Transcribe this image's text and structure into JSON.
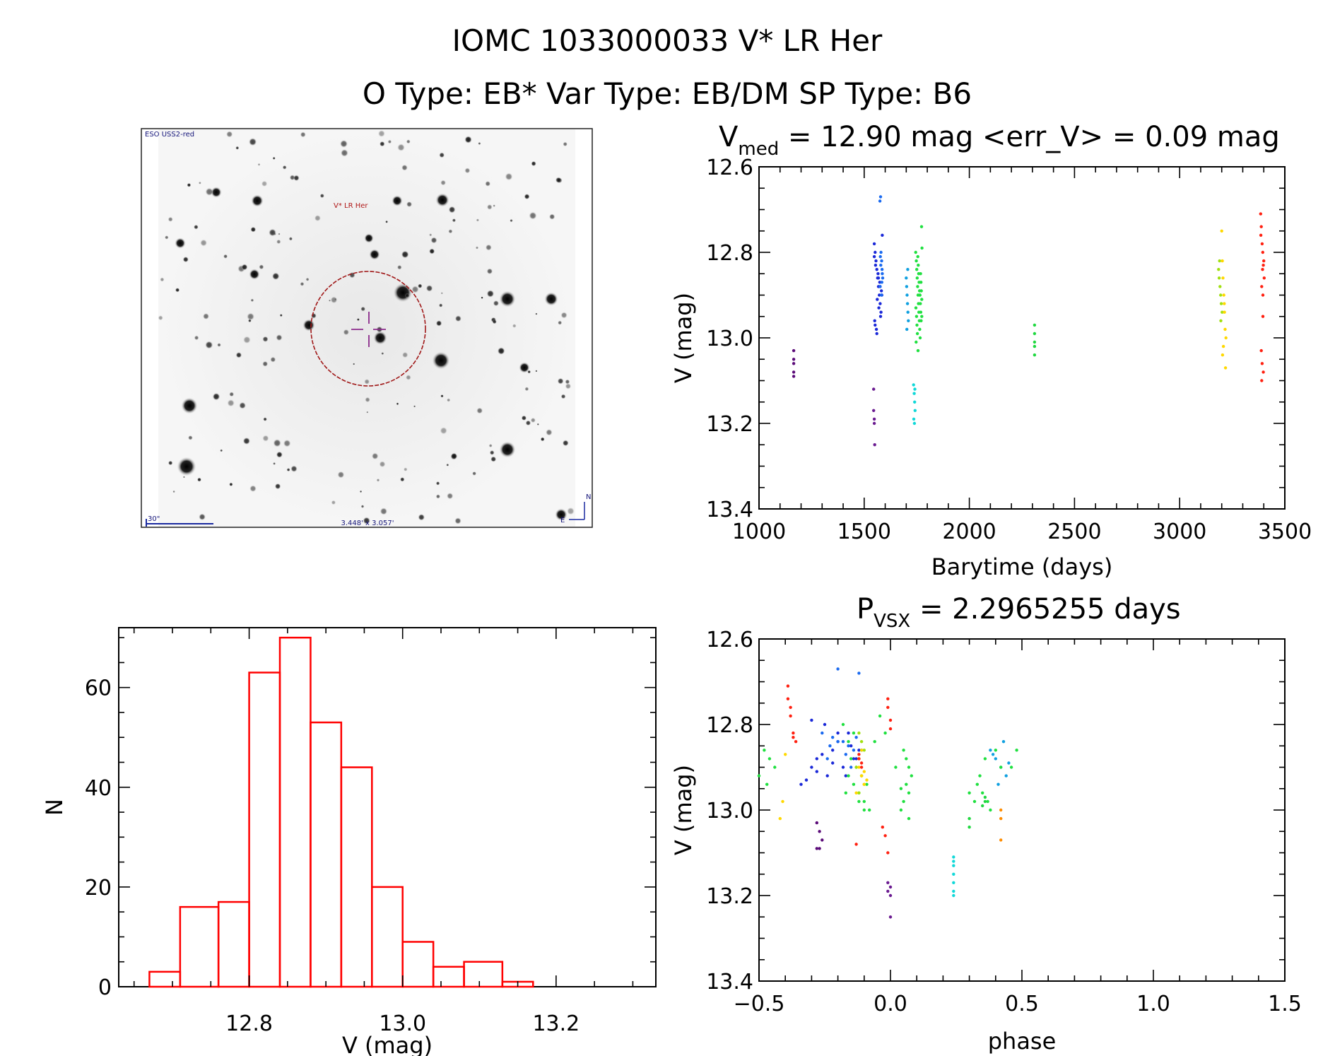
{
  "header": {
    "line1": "IOMC 1033000033   V* LR Her",
    "line2": "O Type: EB*  Var Type: EB/DM  SP Type: B6"
  },
  "finder": {
    "survey_label": "ESO USS2-red",
    "target_label": "V* LR Her",
    "scale_label": "30\"",
    "fov_label": "3.448' x 3.057'",
    "north_label": "N",
    "east_label": "E"
  },
  "colors": {
    "histogram": "#ff0000",
    "axis": "#000000"
  },
  "chart_data": [
    {
      "type": "scatter",
      "id": "lightcurve",
      "title_main": "V",
      "title_sub": "med",
      "title_rest": " = 12.90 mag <err_V> = 0.09 mag",
      "xlabel": "Barytime (days)",
      "ylabel": "V (mag)",
      "xlim": [
        1000,
        3500
      ],
      "ylim": [
        13.4,
        12.6
      ],
      "xticks": [
        1000,
        1500,
        2000,
        2500,
        3000,
        3500
      ],
      "yticks": [
        12.6,
        12.8,
        13.0,
        13.2,
        13.4
      ],
      "series": [
        {
          "name": "season-1",
          "color": "#5a0a78",
          "x": [
            1165,
            1165,
            1165,
            1165,
            1165
          ],
          "y": [
            13.03,
            13.05,
            13.06,
            13.08,
            13.09
          ]
        },
        {
          "name": "season-2a",
          "color": "#6a1a90",
          "x": [
            1545,
            1545,
            1548,
            1548,
            1550
          ],
          "y": [
            13.12,
            13.17,
            13.19,
            13.2,
            13.25
          ]
        },
        {
          "name": "season-2b",
          "color": "#1a28d8",
          "x": [
            1548,
            1552,
            1556,
            1560,
            1564,
            1568,
            1572,
            1576,
            1580,
            1550,
            1558,
            1566,
            1574,
            1582,
            1554,
            1562,
            1570,
            1578,
            1548,
            1586,
            1552,
            1560,
            1568,
            1576,
            1584
          ],
          "y": [
            12.78,
            12.8,
            12.82,
            12.84,
            12.86,
            12.88,
            12.9,
            12.92,
            12.94,
            12.96,
            12.98,
            12.85,
            12.87,
            12.89,
            12.83,
            12.91,
            12.93,
            12.95,
            12.81,
            12.76,
            12.97,
            12.99,
            12.86,
            12.88,
            12.9
          ]
        },
        {
          "name": "season-2c",
          "color": "#1a6af0",
          "x": [
            1575,
            1578,
            1580,
            1583,
            1585,
            1588,
            1576,
            1582,
            1586,
            1579,
            1584,
            1577
          ],
          "y": [
            12.68,
            12.67,
            12.8,
            12.82,
            12.84,
            12.86,
            12.88,
            12.9,
            12.85,
            12.83,
            12.87,
            12.81
          ]
        },
        {
          "name": "season-3a",
          "color": "#10a0e0",
          "x": [
            1700,
            1702,
            1704,
            1706,
            1708,
            1710,
            1703,
            1707
          ],
          "y": [
            12.86,
            12.88,
            12.9,
            12.92,
            12.94,
            12.96,
            12.98,
            12.84
          ]
        },
        {
          "name": "season-3b",
          "color": "#10d8d8",
          "x": [
            1735,
            1738,
            1740,
            1742,
            1736,
            1739,
            1741
          ],
          "y": [
            13.11,
            13.13,
            13.15,
            13.17,
            13.19,
            13.2,
            13.12
          ]
        },
        {
          "name": "season-3c",
          "color": "#20e040",
          "x": [
            1745,
            1748,
            1750,
            1752,
            1754,
            1756,
            1758,
            1760,
            1762,
            1764,
            1766,
            1768,
            1770,
            1772,
            1774,
            1746,
            1749,
            1751,
            1753,
            1755,
            1757,
            1759,
            1761,
            1763,
            1765,
            1767,
            1769,
            1771,
            1773,
            1775,
            1747,
            1756,
            1765,
            1774
          ],
          "y": [
            12.8,
            12.82,
            12.84,
            12.86,
            12.88,
            12.9,
            12.92,
            12.94,
            12.96,
            12.98,
            13.0,
            12.85,
            12.87,
            12.89,
            12.91,
            12.93,
            12.95,
            12.97,
            12.99,
            12.81,
            12.83,
            12.85,
            12.87,
            12.89,
            12.9,
            12.92,
            12.94,
            12.96,
            12.74,
            12.79,
            13.01,
            13.03,
            12.9,
            12.95
          ]
        },
        {
          "name": "season-4",
          "color": "#20d840",
          "x": [
            2310,
            2310,
            2310,
            2310,
            2310
          ],
          "y": [
            12.97,
            12.99,
            13.01,
            13.02,
            13.04
          ]
        },
        {
          "name": "season-5a",
          "color": "#a0e010",
          "x": [
            3185,
            3188,
            3192,
            3195,
            3198,
            3202,
            3190,
            3196
          ],
          "y": [
            12.84,
            12.86,
            12.88,
            12.9,
            12.92,
            12.94,
            12.82,
            12.96
          ]
        },
        {
          "name": "season-5b",
          "color": "#ffd800",
          "x": [
            3200,
            3203,
            3206,
            3210,
            3213,
            3216,
            3208,
            3204,
            3212,
            3218,
            3220
          ],
          "y": [
            12.75,
            12.82,
            12.86,
            12.9,
            12.94,
            12.98,
            13.02,
            13.04,
            12.92,
            13.07,
            13.0
          ]
        },
        {
          "name": "season-6",
          "color": "#ff2010",
          "x": [
            3385,
            3388,
            3392,
            3395,
            3398,
            3402,
            3390,
            3396,
            3386,
            3400,
            3394,
            3388,
            3392,
            3398,
            3390,
            3396
          ],
          "y": [
            12.71,
            12.74,
            12.78,
            12.8,
            12.83,
            12.86,
            12.88,
            12.9,
            12.76,
            12.82,
            12.84,
            13.03,
            13.06,
            13.08,
            13.1,
            12.95
          ]
        }
      ]
    },
    {
      "type": "bar",
      "id": "histogram",
      "xlabel": "V (mag)",
      "ylabel": "N",
      "xlim": [
        12.63,
        13.33
      ],
      "ylim": [
        0,
        72
      ],
      "xticks": [
        12.8,
        13.0,
        13.2
      ],
      "yticks": [
        0,
        20,
        40,
        60
      ],
      "bin_edges": [
        12.67,
        12.71,
        12.76,
        12.8,
        12.84,
        12.88,
        12.92,
        12.96,
        13.0,
        13.04,
        13.08,
        13.13,
        13.17,
        13.21,
        13.25
      ],
      "values": [
        3,
        16,
        17,
        63,
        70,
        53,
        44,
        20,
        9,
        4,
        5,
        1,
        0,
        0
      ]
    },
    {
      "type": "scatter",
      "id": "phased",
      "title_main": "P",
      "title_sub": "VSX",
      "title_rest": " = 2.2965255 days",
      "xlabel": "phase",
      "ylabel": "V (mag)",
      "xlim": [
        -0.5,
        1.5
      ],
      "ylim": [
        13.4,
        12.6
      ],
      "xticks": [
        -0.5,
        0.0,
        0.5,
        1.0,
        1.5
      ],
      "yticks": [
        12.6,
        12.8,
        13.0,
        13.2,
        13.4
      ],
      "series": [
        {
          "name": "season-1",
          "color": "#5a0a78",
          "x": [
            -0.28,
            -0.27,
            -0.26,
            -0.28,
            -0.27
          ],
          "y": [
            13.03,
            13.05,
            13.07,
            13.09,
            13.09
          ]
        },
        {
          "name": "season-2a",
          "color": "#6a1a90",
          "x": [
            -0.01,
            -0.01,
            0.0,
            0.0,
            0.0
          ],
          "y": [
            13.17,
            13.19,
            13.18,
            13.2,
            13.25
          ]
        },
        {
          "name": "season-2b",
          "color": "#1a28d8",
          "x": [
            -0.34,
            -0.32,
            -0.3,
            -0.28,
            -0.26,
            -0.24,
            -0.22,
            -0.2,
            -0.18,
            -0.16,
            -0.14,
            -0.12,
            -0.3,
            -0.25,
            -0.2,
            -0.15,
            -0.28,
            -0.22,
            -0.17,
            -0.13
          ],
          "y": [
            12.94,
            12.93,
            12.9,
            12.88,
            12.87,
            12.92,
            12.86,
            12.84,
            12.9,
            12.82,
            12.88,
            12.86,
            12.79,
            12.8,
            12.82,
            12.85,
            12.91,
            12.89,
            12.92,
            12.88
          ]
        },
        {
          "name": "season-2c",
          "color": "#1a6af0",
          "x": [
            -0.2,
            -0.12,
            -0.26,
            -0.22,
            -0.18,
            -0.16,
            -0.14,
            -0.24,
            -0.2,
            -0.17,
            -0.15,
            -0.13,
            -0.11,
            -0.23
          ],
          "y": [
            12.67,
            12.68,
            12.82,
            12.83,
            12.84,
            12.85,
            12.86,
            12.88,
            12.84,
            12.87,
            12.9,
            12.83,
            12.86,
            12.85
          ]
        },
        {
          "name": "season-3a",
          "color": "#10a0e0",
          "x": [
            0.38,
            0.4,
            0.42,
            0.44,
            0.41,
            0.43,
            0.39,
            0.45
          ],
          "y": [
            12.86,
            12.88,
            12.9,
            12.92,
            12.94,
            12.84,
            12.87,
            12.89
          ]
        },
        {
          "name": "season-3b",
          "color": "#10d8d8",
          "x": [
            0.24,
            0.24,
            0.24,
            0.24,
            0.24,
            0.24,
            0.24
          ],
          "y": [
            13.11,
            13.13,
            13.15,
            13.17,
            13.19,
            13.2,
            13.12
          ]
        },
        {
          "name": "season-3c",
          "color": "#20e040",
          "x": [
            -0.48,
            -0.46,
            -0.44,
            -0.5,
            -0.47,
            -0.16,
            -0.14,
            -0.12,
            -0.1,
            -0.08,
            -0.15,
            -0.13,
            -0.11,
            -0.09,
            -0.17,
            -0.12,
            -0.1,
            -0.14,
            -0.06,
            0.05,
            0.06,
            0.07,
            0.08,
            0.06,
            0.07,
            0.05,
            0.04,
            0.07,
            0.3,
            0.32,
            0.34,
            0.36,
            0.4,
            0.42,
            0.33,
            0.35,
            0.37,
            0.38,
            0.46,
            0.48,
            -0.04,
            -0.02,
            0.02,
            0.04,
            -0.18,
            -0.16
          ],
          "y": [
            12.86,
            12.88,
            12.9,
            12.92,
            12.94,
            12.92,
            12.94,
            12.96,
            12.98,
            13.0,
            12.88,
            12.9,
            12.92,
            12.94,
            12.96,
            12.98,
            13.0,
            12.82,
            12.84,
            12.86,
            12.88,
            12.9,
            12.92,
            12.94,
            12.96,
            12.98,
            13.0,
            13.02,
            12.96,
            12.98,
            12.92,
            12.88,
            12.86,
            12.9,
            12.94,
            12.96,
            12.98,
            13.0,
            12.9,
            12.86,
            12.78,
            12.82,
            12.9,
            12.95,
            12.8,
            12.84
          ]
        },
        {
          "name": "season-4",
          "color": "#20d840",
          "x": [
            0.3,
            0.3,
            0.36,
            0.36,
            0.35
          ],
          "y": [
            13.02,
            13.04,
            12.98,
            12.97,
            12.99
          ]
        },
        {
          "name": "season-5a",
          "color": "#a0e010",
          "x": [
            -0.12,
            -0.11,
            -0.1,
            -0.12,
            -0.13,
            -0.11,
            -0.1,
            -0.12
          ],
          "y": [
            12.82,
            12.84,
            12.86,
            12.88,
            12.9,
            12.92,
            12.94,
            12.96
          ]
        },
        {
          "name": "season-5b",
          "color": "#ffd800",
          "x": [
            -0.4,
            -0.41,
            -0.42,
            -0.12,
            -0.11,
            -0.1,
            -0.13,
            -0.12,
            -0.11,
            -0.1,
            -0.09
          ],
          "y": [
            12.87,
            12.98,
            13.02,
            12.9,
            12.92,
            12.94,
            12.96,
            12.88,
            12.86,
            12.91,
            12.93
          ]
        },
        {
          "name": "season-5c",
          "color": "#ff8c00",
          "x": [
            0.42,
            0.42,
            0.42
          ],
          "y": [
            13.02,
            13.07,
            13.0
          ]
        },
        {
          "name": "season-6",
          "color": "#ff2010",
          "x": [
            -0.39,
            -0.39,
            -0.38,
            -0.38,
            -0.37,
            -0.37,
            -0.36,
            -0.01,
            -0.01,
            0.0,
            0.0,
            -0.12,
            -0.12,
            -0.11,
            -0.11,
            -0.13,
            -0.03,
            -0.02,
            -0.01
          ],
          "y": [
            12.71,
            12.74,
            12.76,
            12.78,
            12.82,
            12.83,
            12.84,
            12.74,
            12.76,
            12.79,
            12.81,
            12.87,
            12.88,
            12.89,
            12.9,
            13.08,
            13.04,
            13.06,
            13.1
          ]
        }
      ]
    }
  ]
}
